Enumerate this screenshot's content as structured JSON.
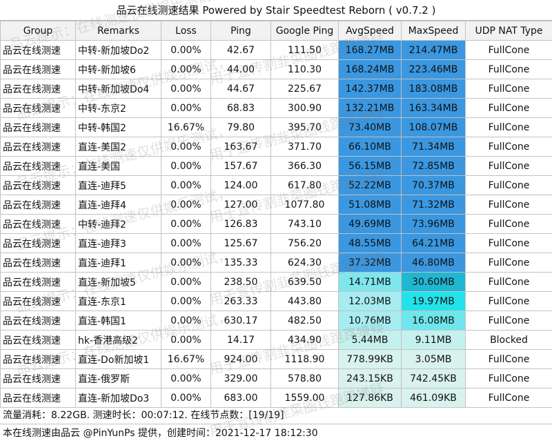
{
  "title": "品云在线测速结果 Powered by Stair Speedtest Reborn ( v0.7.2 )",
  "columns": [
    "Group",
    "Remarks",
    "Loss",
    "Ping",
    "Google Ping",
    "AvgSpeed",
    "MaxSpeed",
    "UDP NAT Type"
  ],
  "rows": [
    {
      "group": "品云在线测速",
      "remarks": "中转-新加坡Do2",
      "loss": "0.00%",
      "ping": "42.67",
      "gping": "111.50",
      "avg": "168.27MB",
      "max": "214.47MB",
      "nat": "FullCone",
      "avg_color": "#3a97e0",
      "max_color": "#3a97e0"
    },
    {
      "group": "品云在线测速",
      "remarks": "中转-新加坡6",
      "loss": "0.00%",
      "ping": "44.00",
      "gping": "110.30",
      "avg": "168.24MB",
      "max": "223.46MB",
      "nat": "FullCone",
      "avg_color": "#3a97e0",
      "max_color": "#3a97e0"
    },
    {
      "group": "品云在线测速",
      "remarks": "中转-新加坡Do4",
      "loss": "0.00%",
      "ping": "44.67",
      "gping": "225.67",
      "avg": "142.37MB",
      "max": "183.08MB",
      "nat": "FullCone",
      "avg_color": "#3a97e0",
      "max_color": "#3a97e0"
    },
    {
      "group": "品云在线测速",
      "remarks": "中转-东京2",
      "loss": "0.00%",
      "ping": "68.83",
      "gping": "300.90",
      "avg": "132.21MB",
      "max": "163.34MB",
      "nat": "FullCone",
      "avg_color": "#3a97e0",
      "max_color": "#3a97e0"
    },
    {
      "group": "品云在线测速",
      "remarks": "中转-韩国2",
      "loss": "16.67%",
      "ping": "79.80",
      "gping": "395.70",
      "avg": "73.40MB",
      "max": "108.07MB",
      "nat": "FullCone",
      "avg_color": "#3a97e0",
      "max_color": "#3a97e0"
    },
    {
      "group": "品云在线测速",
      "remarks": "直连-美国2",
      "loss": "0.00%",
      "ping": "163.67",
      "gping": "371.70",
      "avg": "66.10MB",
      "max": "71.34MB",
      "nat": "FullCone",
      "avg_color": "#3a97e0",
      "max_color": "#3a97e0"
    },
    {
      "group": "品云在线测速",
      "remarks": "直连-美国",
      "loss": "0.00%",
      "ping": "157.67",
      "gping": "366.30",
      "avg": "56.15MB",
      "max": "72.85MB",
      "nat": "FullCone",
      "avg_color": "#3a97e0",
      "max_color": "#3a97e0"
    },
    {
      "group": "品云在线测速",
      "remarks": "直连-迪拜5",
      "loss": "0.00%",
      "ping": "124.00",
      "gping": "617.80",
      "avg": "52.22MB",
      "max": "70.37MB",
      "nat": "FullCone",
      "avg_color": "#3a97e0",
      "max_color": "#3a97e0"
    },
    {
      "group": "品云在线测速",
      "remarks": "直连-迪拜4",
      "loss": "0.00%",
      "ping": "127.00",
      "gping": "1077.80",
      "avg": "51.08MB",
      "max": "71.32MB",
      "nat": "FullCone",
      "avg_color": "#3a97e0",
      "max_color": "#3a97e0"
    },
    {
      "group": "品云在线测速",
      "remarks": "中转-迪拜2",
      "loss": "0.00%",
      "ping": "126.83",
      "gping": "743.10",
      "avg": "49.69MB",
      "max": "73.96MB",
      "nat": "FullCone",
      "avg_color": "#3a97e0",
      "max_color": "#3a97e0"
    },
    {
      "group": "品云在线测速",
      "remarks": "直连-迪拜3",
      "loss": "0.00%",
      "ping": "125.67",
      "gping": "756.20",
      "avg": "48.55MB",
      "max": "64.21MB",
      "nat": "FullCone",
      "avg_color": "#3a97e0",
      "max_color": "#3a97e0"
    },
    {
      "group": "品云在线测速",
      "remarks": "直连-迪拜1",
      "loss": "0.00%",
      "ping": "135.33",
      "gping": "624.30",
      "avg": "37.32MB",
      "max": "46.80MB",
      "nat": "FullCone",
      "avg_color": "#3a97e0",
      "max_color": "#3a97e0"
    },
    {
      "group": "品云在线测速",
      "remarks": "直连-新加坡5",
      "loss": "0.00%",
      "ping": "238.50",
      "gping": "639.50",
      "avg": "14.71MB",
      "max": "30.60MB",
      "nat": "FullCone",
      "avg_color": "#7fe6ee",
      "max_color": "#20b7d2"
    },
    {
      "group": "品云在线测速",
      "remarks": "直连-东京1",
      "loss": "0.00%",
      "ping": "263.33",
      "gping": "443.80",
      "avg": "12.03MB",
      "max": "19.97MB",
      "nat": "FullCone",
      "avg_color": "#a6ecf0",
      "max_color": "#24e2ea"
    },
    {
      "group": "品云在线测速",
      "remarks": "直连-韩国1",
      "loss": "0.00%",
      "ping": "630.17",
      "gping": "482.50",
      "avg": "10.76MB",
      "max": "16.08MB",
      "nat": "FullCone",
      "avg_color": "#a6ecf0",
      "max_color": "#6fe6ec"
    },
    {
      "group": "品云在线测速",
      "remarks": "hk-香港高级2",
      "loss": "0.00%",
      "ping": "14.17",
      "gping": "434.90",
      "avg": "5.44MB",
      "max": "9.11MB",
      "nat": "Blocked",
      "avg_color": "#c4f0ee",
      "max_color": "#c4f0ee"
    },
    {
      "group": "品云在线测速",
      "remarks": "直连-Do新加坡1",
      "loss": "16.67%",
      "ping": "924.00",
      "gping": "1118.90",
      "avg": "778.99KB",
      "max": "3.05MB",
      "nat": "FullCone",
      "avg_color": "#d8f2ee",
      "max_color": "#d8f2ee"
    },
    {
      "group": "品云在线测速",
      "remarks": "直连-俄罗斯",
      "loss": "0.00%",
      "ping": "329.00",
      "gping": "578.80",
      "avg": "243.15KB",
      "max": "742.45KB",
      "nat": "FullCone",
      "avg_color": "#d8f2ee",
      "max_color": "#d8f2ee"
    },
    {
      "group": "品云在线测速",
      "remarks": "直连-新加坡Do3",
      "loss": "0.00%",
      "ping": "683.00",
      "gping": "1559.00",
      "avg": "127.86KB",
      "max": "461.09KB",
      "nat": "FullCone",
      "avg_color": "#d8f2ee",
      "max_color": "#d8f2ee"
    }
  ],
  "footer": {
    "traffic": "流量消耗：8.22GB. 测速时长：00:07:12. 在线节点数：[19/19]",
    "credit": "本在线测速由品云 @PinYunPs 提供，创建时间：2021-12-17 18:12:30"
  },
  "watermark": {
    "line_a": "品云提示：在线测速仅供娱乐测试，",
    "line_b": "用于宣传割韭菜圈钱跑路嫌疑"
  }
}
